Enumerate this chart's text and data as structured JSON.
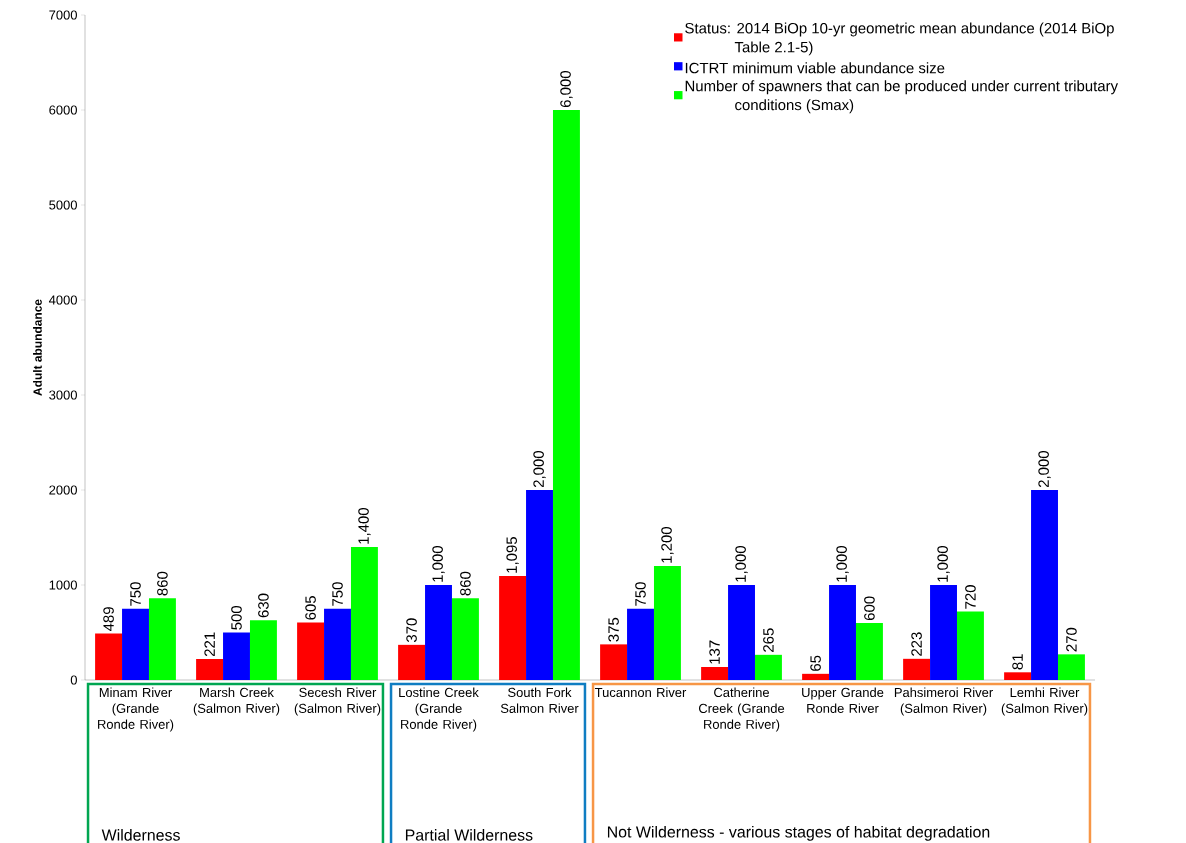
{
  "chart_data": {
    "type": "bar",
    "ylabel": "Adult abundance",
    "categories": [
      "Minam River (Grande Ronde River)",
      "Marsh Creek (Salmon River)",
      "Secesh River (Salmon River)",
      "Lostine Creek (Grande Ronde River)",
      "South Fork Salmon River",
      "Tucannon River",
      "Catherine Creek (Grande Ronde River)",
      "Upper Grande Ronde River",
      "Pahsimeroi River (Salmon River)",
      "Lemhi River (Salmon River)"
    ],
    "series": [
      {
        "name": "Status: 2014 BiOp 10-yr geometric mean abundance (2014 BiOp Table 2.1-5)",
        "color": "#ff0000",
        "values": [
          489,
          221,
          605,
          370,
          1095,
          375,
          137,
          65,
          223,
          81
        ],
        "value_labels": [
          "489",
          "221",
          "605",
          "370",
          "1,095",
          "375",
          "137",
          "65",
          "223",
          "81"
        ]
      },
      {
        "name": "ICTRT minimum viable abundance size",
        "color": "#0000ff",
        "values": [
          750,
          500,
          750,
          1000,
          2000,
          750,
          1000,
          1000,
          1000,
          2000
        ],
        "value_labels": [
          "750",
          "500",
          "750",
          "1,000",
          "2,000",
          "750",
          "1,000",
          "1,000",
          "1,000",
          "2,000"
        ]
      },
      {
        "name": "Number of spawners that can be produced under current tributary conditions (Smax)",
        "color": "#00ff00",
        "values": [
          860,
          630,
          1400,
          860,
          6000,
          1200,
          265,
          600,
          720,
          270
        ],
        "value_labels": [
          "860",
          "630",
          "1,400",
          "860",
          "6,000",
          "1,200",
          "265",
          "600",
          "720",
          "270"
        ]
      }
    ],
    "ylim": [
      0,
      7000
    ],
    "yticks": [
      0,
      1000,
      2000,
      3000,
      4000,
      5000,
      6000,
      7000
    ],
    "grid": false,
    "legend": "top right",
    "annotations": [
      "Wilderness",
      "Partial Wilderness",
      "Not Wilderness - various stages of habitat degradation"
    ]
  }
}
